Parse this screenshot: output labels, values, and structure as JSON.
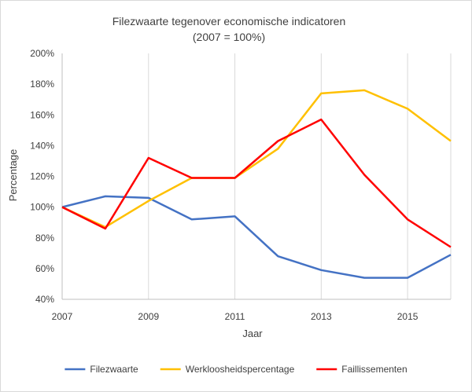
{
  "chart_data": {
    "type": "line",
    "title": "Filezwaarte tegenover  economische indicatoren",
    "subtitle": "(2007 = 100%)",
    "xlabel": "Jaar",
    "ylabel": "Percentage",
    "x": [
      2007,
      2008,
      2009,
      2010,
      2011,
      2012,
      2013,
      2014,
      2015,
      2016
    ],
    "xticks": [
      "2007",
      "2009",
      "2011",
      "2013",
      "2015"
    ],
    "xlim": [
      2007,
      2016
    ],
    "ylim": [
      40,
      200
    ],
    "yticks": [
      "40%",
      "60%",
      "80%",
      "100%",
      "120%",
      "140%",
      "160%",
      "180%",
      "200%"
    ],
    "grid": "vertical",
    "legend_position": "bottom",
    "series": [
      {
        "name": "Filezwaarte",
        "color": "#4472C4",
        "values": [
          100,
          107,
          106,
          92,
          94,
          68,
          59,
          54,
          54,
          69
        ]
      },
      {
        "name": "Werkloosheidspercentage",
        "color": "#FFC000",
        "values": [
          100,
          87,
          104,
          119,
          119,
          138,
          174,
          176,
          164,
          143
        ]
      },
      {
        "name": "Faillissementen",
        "color": "#FF0000",
        "values": [
          100,
          86,
          132,
          119,
          119,
          143,
          157,
          121,
          92,
          74
        ]
      }
    ]
  }
}
